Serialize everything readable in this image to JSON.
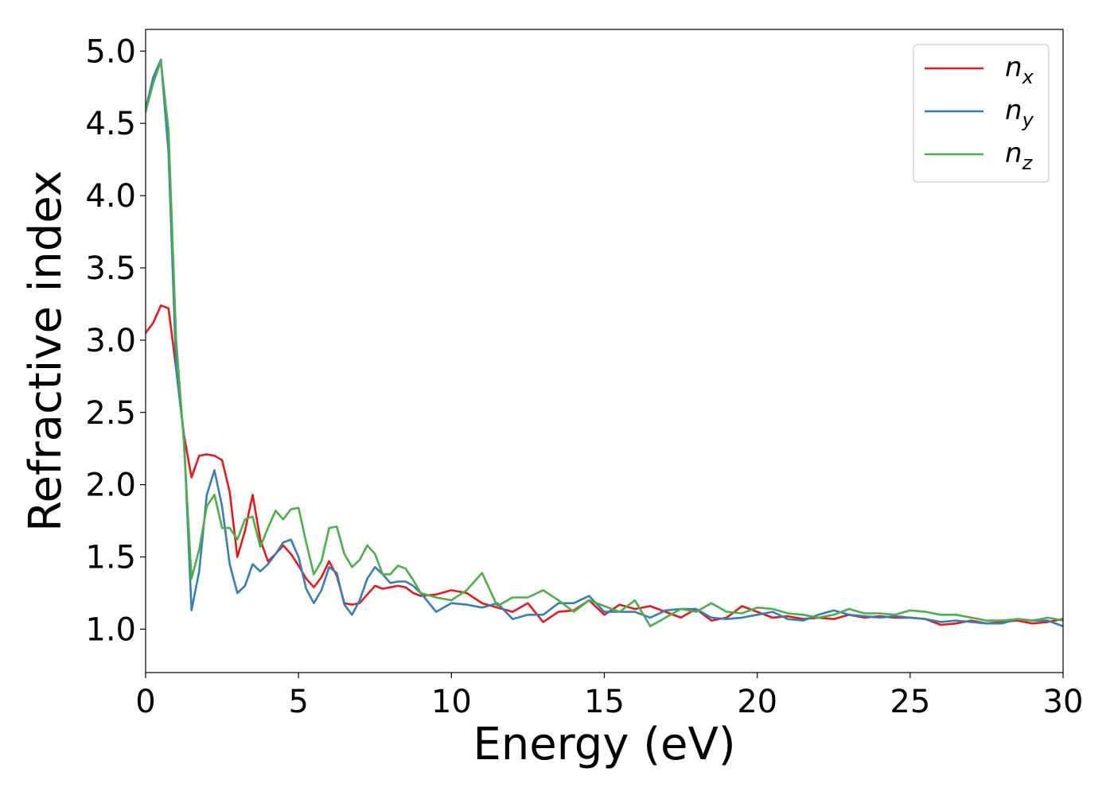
{
  "chart_data": {
    "type": "line",
    "xlabel": "Energy (eV)",
    "ylabel": "Refractive index",
    "xlim": [
      0,
      30
    ],
    "ylim": [
      0.7,
      5.15
    ],
    "xticks": [
      "0",
      "5",
      "10",
      "15",
      "20",
      "25",
      "30"
    ],
    "yticks": [
      "1.0",
      "1.5",
      "2.0",
      "2.5",
      "3.0",
      "3.5",
      "4.0",
      "4.5",
      "5.0"
    ],
    "grid": false,
    "legend_position": "top-right",
    "series": [
      {
        "name": "n",
        "sub": "x",
        "color": "#e41a1c",
        "x": [
          0,
          0.25,
          0.5,
          0.75,
          1.0,
          1.25,
          1.5,
          1.75,
          2.0,
          2.25,
          2.5,
          2.75,
          3.0,
          3.25,
          3.5,
          3.75,
          4.0,
          4.25,
          4.5,
          4.75,
          5.0,
          5.25,
          5.5,
          5.75,
          6.0,
          6.25,
          6.5,
          6.75,
          7.0,
          7.25,
          7.5,
          7.75,
          8.0,
          8.25,
          8.5,
          8.75,
          9.0,
          9.5,
          10.0,
          10.5,
          11.0,
          11.5,
          12.0,
          12.5,
          13.0,
          13.5,
          14.0,
          14.5,
          15.0,
          15.5,
          16.0,
          16.5,
          17.0,
          17.5,
          18.0,
          18.5,
          19.0,
          19.5,
          20.0,
          20.5,
          21.0,
          21.5,
          22.0,
          22.5,
          23.0,
          23.5,
          24.0,
          24.5,
          25.0,
          25.5,
          26.0,
          26.5,
          27.0,
          27.5,
          28.0,
          28.5,
          29.0,
          29.5,
          30.0
        ],
        "y": [
          3.05,
          3.12,
          3.24,
          3.22,
          2.8,
          2.35,
          2.05,
          2.2,
          2.21,
          2.2,
          2.17,
          1.95,
          1.5,
          1.68,
          1.93,
          1.62,
          1.47,
          1.52,
          1.58,
          1.52,
          1.44,
          1.35,
          1.29,
          1.36,
          1.47,
          1.37,
          1.18,
          1.17,
          1.18,
          1.24,
          1.3,
          1.28,
          1.29,
          1.3,
          1.29,
          1.25,
          1.23,
          1.24,
          1.27,
          1.25,
          1.18,
          1.15,
          1.12,
          1.18,
          1.05,
          1.12,
          1.13,
          1.2,
          1.1,
          1.17,
          1.14,
          1.16,
          1.12,
          1.08,
          1.14,
          1.06,
          1.08,
          1.16,
          1.12,
          1.08,
          1.09,
          1.07,
          1.08,
          1.07,
          1.1,
          1.08,
          1.09,
          1.08,
          1.08,
          1.07,
          1.03,
          1.04,
          1.06,
          1.04,
          1.05,
          1.06,
          1.04,
          1.05,
          1.07
        ]
      },
      {
        "name": "n",
        "sub": "y",
        "color": "#377eb8",
        "x": [
          0,
          0.25,
          0.5,
          0.75,
          1.0,
          1.25,
          1.5,
          1.75,
          2.0,
          2.25,
          2.5,
          2.75,
          3.0,
          3.25,
          3.5,
          3.75,
          4.0,
          4.25,
          4.5,
          4.75,
          5.0,
          5.25,
          5.5,
          5.75,
          6.0,
          6.25,
          6.5,
          6.75,
          7.0,
          7.25,
          7.5,
          7.75,
          8.0,
          8.25,
          8.5,
          8.75,
          9.0,
          9.5,
          10.0,
          10.5,
          11.0,
          11.5,
          12.0,
          12.5,
          13.0,
          13.5,
          14.0,
          14.5,
          15.0,
          15.5,
          16.0,
          16.5,
          17.0,
          17.5,
          18.0,
          18.5,
          19.0,
          19.5,
          20.0,
          20.5,
          21.0,
          21.5,
          22.0,
          22.5,
          23.0,
          23.5,
          24.0,
          24.5,
          25.0,
          25.5,
          26.0,
          26.5,
          27.0,
          27.5,
          28.0,
          28.5,
          29.0,
          29.5,
          30.0
        ],
        "y": [
          4.6,
          4.82,
          4.94,
          4.3,
          2.8,
          2.35,
          1.13,
          1.4,
          1.93,
          2.1,
          1.85,
          1.45,
          1.25,
          1.3,
          1.45,
          1.4,
          1.45,
          1.52,
          1.6,
          1.62,
          1.5,
          1.28,
          1.18,
          1.27,
          1.43,
          1.39,
          1.17,
          1.1,
          1.2,
          1.35,
          1.43,
          1.38,
          1.32,
          1.33,
          1.33,
          1.3,
          1.25,
          1.12,
          1.18,
          1.17,
          1.15,
          1.18,
          1.07,
          1.1,
          1.1,
          1.18,
          1.18,
          1.23,
          1.12,
          1.12,
          1.12,
          1.08,
          1.13,
          1.14,
          1.14,
          1.08,
          1.07,
          1.08,
          1.1,
          1.12,
          1.07,
          1.06,
          1.1,
          1.13,
          1.1,
          1.09,
          1.08,
          1.09,
          1.08,
          1.07,
          1.05,
          1.06,
          1.05,
          1.04,
          1.04,
          1.07,
          1.06,
          1.06,
          1.02
        ]
      },
      {
        "name": "n",
        "sub": "z",
        "color": "#4daf4a",
        "x": [
          0,
          0.25,
          0.5,
          0.75,
          1.0,
          1.25,
          1.5,
          1.75,
          2.0,
          2.25,
          2.5,
          2.75,
          3.0,
          3.25,
          3.5,
          3.75,
          4.0,
          4.25,
          4.5,
          4.75,
          5.0,
          5.25,
          5.5,
          5.75,
          6.0,
          6.25,
          6.5,
          6.75,
          7.0,
          7.25,
          7.5,
          7.75,
          8.0,
          8.25,
          8.5,
          8.75,
          9.0,
          9.5,
          10.0,
          10.5,
          11.0,
          11.5,
          12.0,
          12.5,
          13.0,
          13.5,
          14.0,
          14.5,
          15.0,
          15.5,
          16.0,
          16.5,
          17.0,
          17.5,
          18.0,
          18.5,
          19.0,
          19.5,
          20.0,
          20.5,
          21.0,
          21.5,
          22.0,
          22.5,
          23.0,
          23.5,
          24.0,
          24.5,
          25.0,
          25.5,
          26.0,
          26.5,
          27.0,
          27.5,
          28.0,
          28.5,
          29.0,
          29.5,
          30.0
        ],
        "y": [
          4.58,
          4.78,
          4.93,
          4.45,
          3.0,
          2.3,
          1.35,
          1.55,
          1.85,
          1.93,
          1.7,
          1.7,
          1.62,
          1.76,
          1.78,
          1.57,
          1.7,
          1.82,
          1.76,
          1.83,
          1.84,
          1.6,
          1.38,
          1.47,
          1.7,
          1.71,
          1.52,
          1.43,
          1.48,
          1.58,
          1.52,
          1.38,
          1.38,
          1.44,
          1.42,
          1.34,
          1.25,
          1.22,
          1.2,
          1.27,
          1.39,
          1.16,
          1.22,
          1.22,
          1.27,
          1.2,
          1.12,
          1.2,
          1.16,
          1.12,
          1.2,
          1.02,
          1.08,
          1.14,
          1.12,
          1.18,
          1.12,
          1.11,
          1.15,
          1.14,
          1.11,
          1.1,
          1.08,
          1.1,
          1.14,
          1.11,
          1.11,
          1.1,
          1.13,
          1.12,
          1.1,
          1.1,
          1.08,
          1.06,
          1.06,
          1.07,
          1.06,
          1.08,
          1.06
        ]
      }
    ]
  }
}
